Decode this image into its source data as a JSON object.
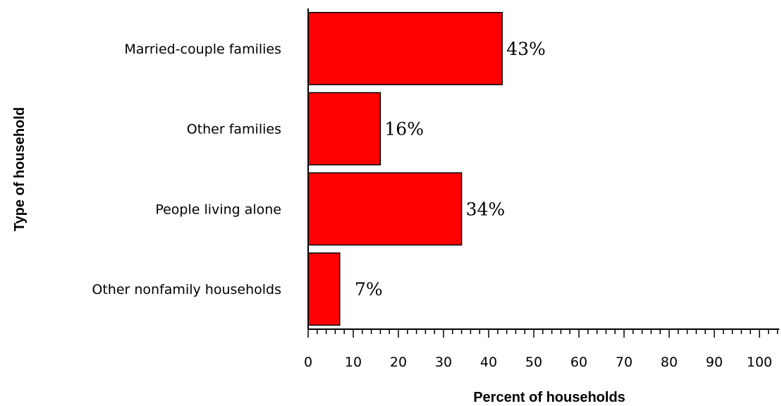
{
  "chart_data": {
    "type": "bar",
    "orientation": "horizontal",
    "categories": [
      "Married-couple families",
      "Other families",
      "People living alone",
      "Other nonfamily households"
    ],
    "values": [
      43,
      16,
      34,
      7
    ],
    "data_labels": [
      "43%",
      "16%",
      "34%",
      "7%"
    ],
    "xlabel": "Percent of households",
    "ylabel": "Type of household",
    "xlim": [
      0,
      100
    ],
    "xticks": [
      0,
      10,
      20,
      30,
      40,
      50,
      60,
      70,
      80,
      90,
      100
    ],
    "grid": false,
    "legend": "none",
    "bar_color": "#ff0000",
    "bar_edge_color": "#000000"
  }
}
